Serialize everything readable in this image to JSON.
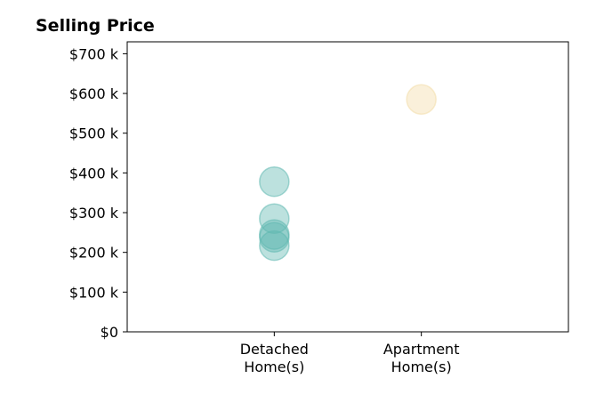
{
  "chart_data": {
    "type": "scatter",
    "title": "Selling Price",
    "xlabel": "",
    "ylabel": "",
    "categories": [
      "Detached\nHome(s)",
      "Apartment\nHome(s)"
    ],
    "ylim": [
      0,
      730000
    ],
    "y_ticks": [
      0,
      100000,
      200000,
      300000,
      400000,
      500000,
      600000,
      700000
    ],
    "y_tick_labels": [
      "$0",
      "$100 k",
      "$200 k",
      "$300 k",
      "$400 k",
      "$500 k",
      "$600 k",
      "$700 k"
    ],
    "grid": false,
    "series": [
      {
        "category": "Detached\nHome(s)",
        "color": "#5fb8b0",
        "values": [
          378000,
          285000,
          245000,
          238000,
          217000
        ]
      },
      {
        "category": "Apartment\nHome(s)",
        "color": "#f3dca8",
        "values": [
          585000
        ]
      }
    ]
  }
}
